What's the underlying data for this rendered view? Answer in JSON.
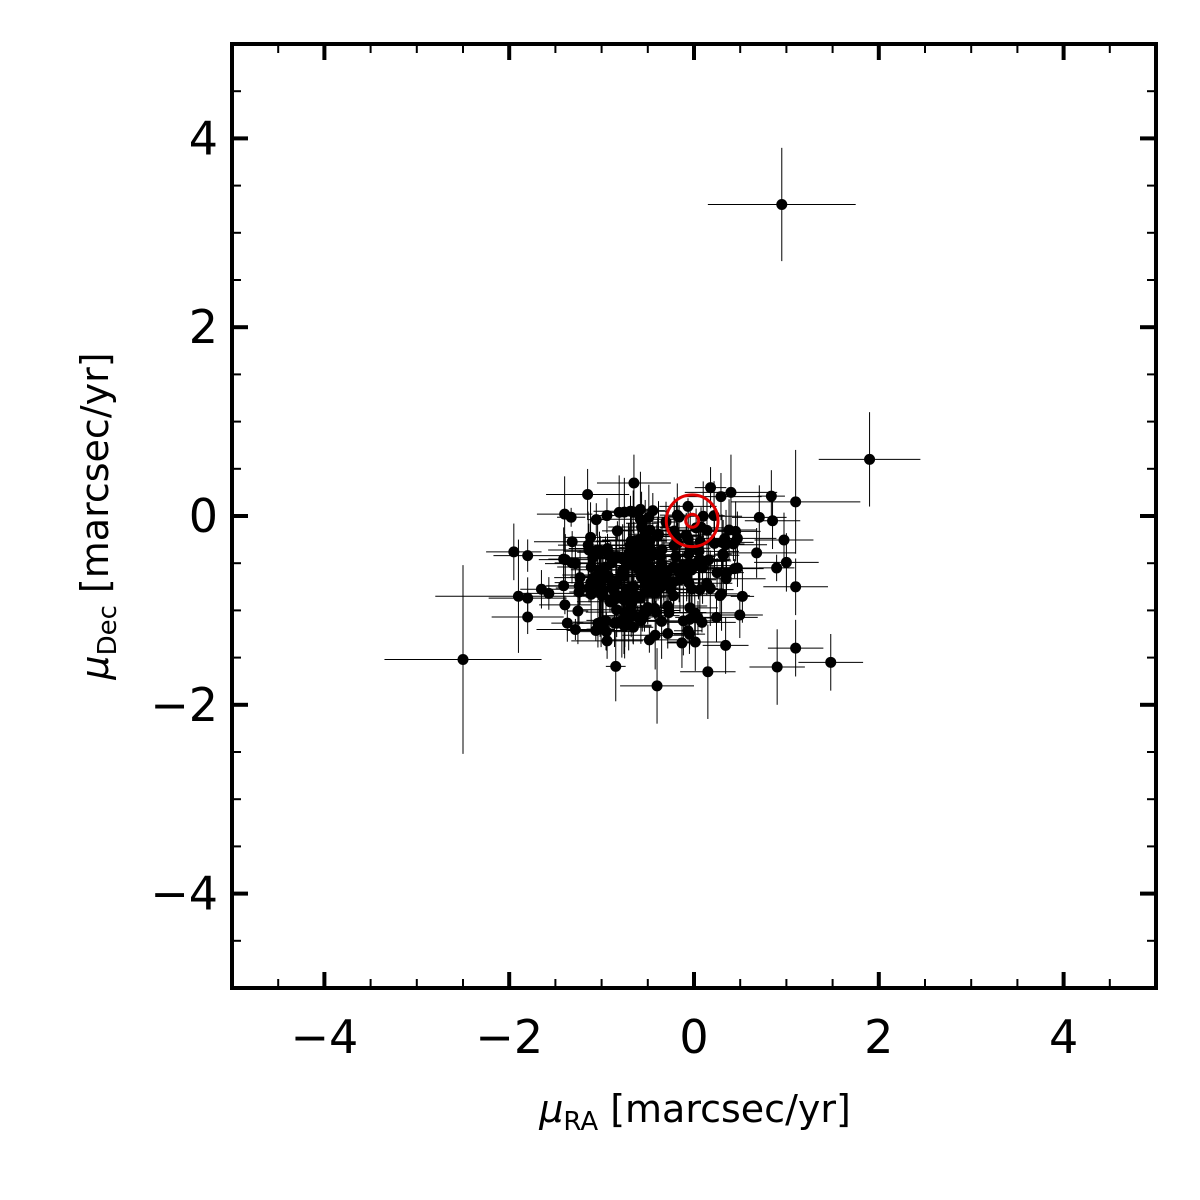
{
  "chart_data": {
    "type": "scatter",
    "title": "",
    "xlabel": {
      "symbol": "μ",
      "subscript": "RA",
      "unit": "[marcsec/yr]"
    },
    "ylabel": {
      "symbol": "μ",
      "subscript": "Dec",
      "unit": "[marcsec/yr]"
    },
    "xlim": [
      -5,
      5
    ],
    "ylim": [
      -5,
      5
    ],
    "xticks": [
      -4,
      -2,
      0,
      2,
      4
    ],
    "yticks": [
      -4,
      -2,
      0,
      2,
      4
    ],
    "xtick_labels": [
      "−4",
      "−2",
      "0",
      "2",
      "4"
    ],
    "ytick_labels": [
      "−4",
      "−2",
      "0",
      "2",
      "4"
    ],
    "minor_tick_step": 0.5,
    "grid": false,
    "colors": {
      "points": "#000000",
      "marker": "#e00000"
    },
    "outliers": [
      {
        "x": 0.95,
        "y": 3.3,
        "xerr": 0.8,
        "yerr": 0.6
      },
      {
        "x": 1.9,
        "y": 0.6,
        "xerr": 0.55,
        "yerr": 0.5
      },
      {
        "x": -2.5,
        "y": -1.52,
        "xerr": 0.85,
        "yerr": 1.0
      },
      {
        "x": 1.1,
        "y": 0.15,
        "xerr": 0.7,
        "yerr": 0.55
      },
      {
        "x": 0.4,
        "y": 0.25,
        "xerr": 0.5,
        "yerr": 0.4
      },
      {
        "x": 1.48,
        "y": -1.55,
        "xerr": 0.35,
        "yerr": 0.3
      },
      {
        "x": -1.9,
        "y": -0.85,
        "xerr": 0.9,
        "yerr": 0.6
      },
      {
        "x": -0.4,
        "y": -1.8,
        "xerr": 0.4,
        "yerr": 0.4
      },
      {
        "x": 0.15,
        "y": -1.65,
        "xerr": 0.3,
        "yerr": 0.5
      },
      {
        "x": -0.65,
        "y": 0.35,
        "xerr": 0.4,
        "yerr": 0.3
      },
      {
        "x": 0.9,
        "y": -1.6,
        "xerr": 0.3,
        "yerr": 0.4
      },
      {
        "x": 1.1,
        "y": -1.4,
        "xerr": 0.3,
        "yerr": 0.3
      },
      {
        "x": 0.85,
        "y": -0.05,
        "xerr": 0.3,
        "yerr": 0.3
      },
      {
        "x": 1.1,
        "y": -0.75,
        "xerr": 0.35,
        "yerr": 0.3
      },
      {
        "x": -1.95,
        "y": -0.38,
        "xerr": 0.3,
        "yerr": 0.3
      },
      {
        "x": -1.4,
        "y": 0.02,
        "xerr": 0.3,
        "yerr": 0.4
      }
    ],
    "cluster": {
      "count": 260,
      "center": [
        -0.45,
        -0.6
      ],
      "spread": [
        0.55,
        0.35
      ],
      "seed": 7,
      "xerr_range": [
        0.08,
        0.45
      ],
      "yerr_range": [
        0.08,
        0.4
      ]
    },
    "reference_marker": {
      "x": -0.02,
      "y": -0.05,
      "shape": "double-circle",
      "radius_outer": 0.28,
      "radius_inner": 0.07
    }
  }
}
